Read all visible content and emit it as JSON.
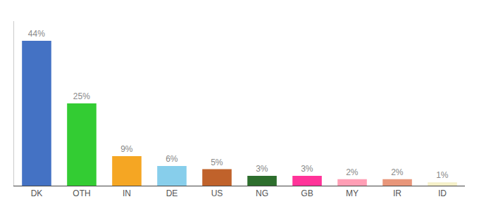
{
  "chart_data": {
    "type": "bar",
    "categories": [
      "DK",
      "OTH",
      "IN",
      "DE",
      "US",
      "NG",
      "GB",
      "MY",
      "IR",
      "ID"
    ],
    "values": [
      44,
      25,
      9,
      6,
      5,
      3,
      3,
      2,
      2,
      1
    ],
    "value_labels": [
      "44%",
      "25%",
      "9%",
      "6%",
      "5%",
      "3%",
      "3%",
      "2%",
      "2%",
      "1%"
    ],
    "colors": [
      "#4472c4",
      "#33cc33",
      "#f5a623",
      "#87ceeb",
      "#c0622b",
      "#2d6e2d",
      "#ff3399",
      "#ff9eb5",
      "#e8967a",
      "#f5f0c8"
    ],
    "ylim": [
      0,
      50
    ],
    "data_labels": true,
    "tick_labels": "x",
    "grid": false
  }
}
